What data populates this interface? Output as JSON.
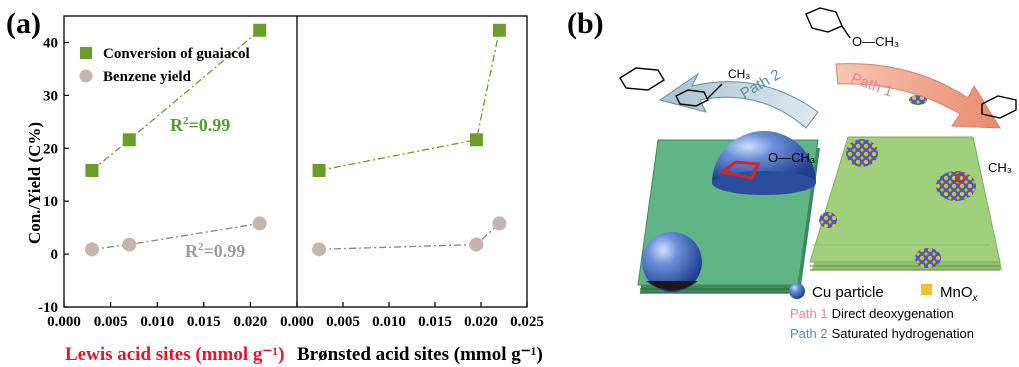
{
  "panel_a_label": "(a)",
  "panel_b_label": "(b)",
  "chart_data": [
    {
      "type": "line",
      "xlabel": "Lewis acid sites (mmol g⁻¹)",
      "ylabel": "Con./Yield (C%)",
      "xlim": [
        0.0,
        0.025
      ],
      "ylim": [
        -10,
        45
      ],
      "xticks": [
        "0.000",
        "0.005",
        "0.010",
        "0.015",
        "0.020"
      ],
      "yticks": [
        "-10",
        "0",
        "10",
        "20",
        "30",
        "40"
      ],
      "series": [
        {
          "name": "Conversion of guaiacol",
          "x": [
            0.003,
            0.007,
            0.021
          ],
          "values": [
            15.8,
            21.6,
            42.3
          ],
          "color": "#6a9c2e",
          "marker": "square",
          "annotation": "R²=0.99"
        },
        {
          "name": "Benzene yield",
          "x": [
            0.003,
            0.007,
            0.021
          ],
          "values": [
            0.9,
            1.8,
            5.8
          ],
          "color": "#c2b6ae",
          "marker": "circle",
          "annotation": "R²=0.99"
        }
      ],
      "legend_position": "top-left"
    },
    {
      "type": "line",
      "xlabel": "Brønsted acid sites (mmol g⁻¹)",
      "xlim": [
        0.0,
        0.025
      ],
      "xticks": [
        "0.000",
        "0.005",
        "0.010",
        "0.015",
        "0.020",
        "0.025"
      ],
      "series": [
        {
          "name": "Conversion of guaiacol",
          "x": [
            0.0024,
            0.0195,
            0.022
          ],
          "values": [
            15.8,
            21.6,
            42.3
          ],
          "color": "#6a9c2e",
          "marker": "square"
        },
        {
          "name": "Benzene yield",
          "x": [
            0.0024,
            0.0195,
            0.022
          ],
          "values": [
            0.9,
            1.8,
            5.8
          ],
          "color": "#c2b6ae",
          "marker": "circle"
        }
      ]
    }
  ],
  "schematic": {
    "labels": {
      "ch3_top": "O—CH₃",
      "ch3_left": "CH₃",
      "ch3_mid": "O—CH₃",
      "ch3_right": "CH₃",
      "path2_arrow": "Path 2",
      "path1_arrow": "Path 1"
    },
    "legend": {
      "cu": "Cu particle",
      "mno_main": "MnO",
      "mno_sub": "x",
      "path1_tag": "Path 1",
      "path1_text": "Direct deoxygenation",
      "path2_tag": "Path 2",
      "path2_text": "Saturated hydrogenation"
    },
    "colors": {
      "path1": "#e8878f",
      "path2": "#5e8f9b",
      "cu": "#3f63b8",
      "mnox": "#f2c12e",
      "left_slab": "#5fb585",
      "right_slab": "#a2cf7b"
    }
  }
}
